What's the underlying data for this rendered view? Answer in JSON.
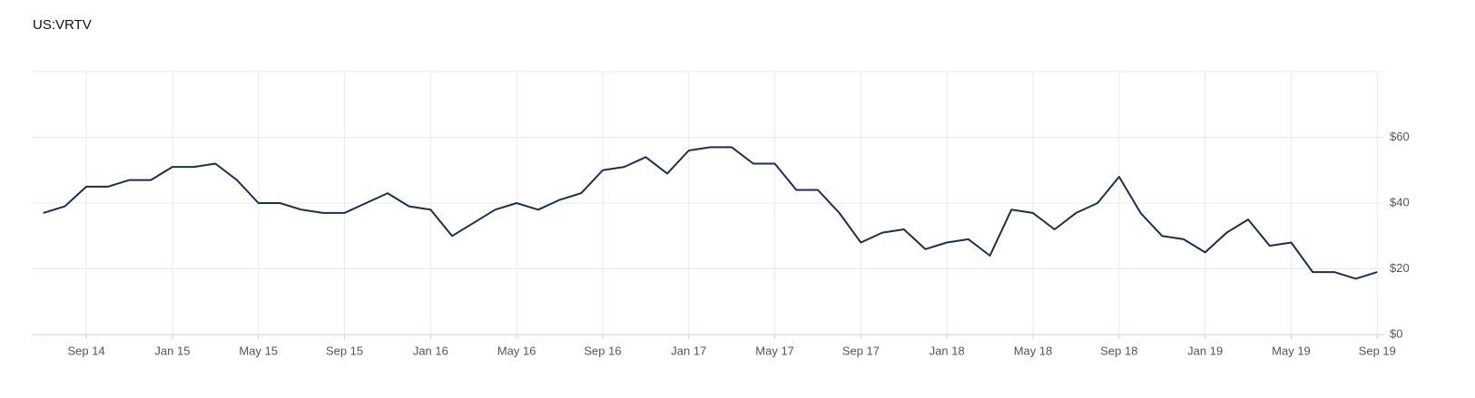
{
  "chart_data": {
    "type": "line",
    "title": "US:VRTV",
    "x": [
      "2014-07",
      "2014-08",
      "2014-09",
      "2014-10",
      "2014-11",
      "2014-12",
      "2015-01",
      "2015-02",
      "2015-03",
      "2015-04",
      "2015-05",
      "2015-06",
      "2015-07",
      "2015-08",
      "2015-09",
      "2015-10",
      "2015-11",
      "2015-12",
      "2016-01",
      "2016-02",
      "2016-03",
      "2016-04",
      "2016-05",
      "2016-06",
      "2016-07",
      "2016-08",
      "2016-09",
      "2016-10",
      "2016-11",
      "2016-12",
      "2017-01",
      "2017-02",
      "2017-03",
      "2017-04",
      "2017-05",
      "2017-06",
      "2017-07",
      "2017-08",
      "2017-09",
      "2017-10",
      "2017-11",
      "2017-12",
      "2018-01",
      "2018-02",
      "2018-03",
      "2018-04",
      "2018-05",
      "2018-06",
      "2018-07",
      "2018-08",
      "2018-09",
      "2018-10",
      "2018-11",
      "2018-12",
      "2019-01",
      "2019-02",
      "2019-03",
      "2019-04",
      "2019-05",
      "2019-06",
      "2019-07",
      "2019-08",
      "2019-09"
    ],
    "series": [
      {
        "color": "#1b2f4b",
        "values": [
          37,
          39,
          45,
          45,
          47,
          47,
          51,
          51,
          52,
          47,
          40,
          40,
          38,
          37,
          37,
          40,
          43,
          39,
          38,
          30,
          34,
          38,
          40,
          38,
          41,
          43,
          50,
          51,
          54,
          49,
          56,
          57,
          57,
          52,
          52,
          44,
          44,
          37,
          28,
          31,
          32,
          26,
          28,
          29,
          24,
          38,
          37,
          32,
          37,
          40,
          48,
          37,
          30,
          29,
          25,
          31,
          35,
          27,
          28,
          19,
          19,
          17,
          19
        ]
      }
    ],
    "xlim": [
      "2014-06",
      "2019-10"
    ],
    "xticks": [
      {
        "value": "2014-09",
        "label": "Sep 14"
      },
      {
        "value": "2015-01",
        "label": "Jan 15"
      },
      {
        "value": "2015-05",
        "label": "May 15"
      },
      {
        "value": "2015-09",
        "label": "Sep 15"
      },
      {
        "value": "2016-01",
        "label": "Jan 16"
      },
      {
        "value": "2016-05",
        "label": "May 16"
      },
      {
        "value": "2016-09",
        "label": "Sep 16"
      },
      {
        "value": "2017-01",
        "label": "Jan 17"
      },
      {
        "value": "2017-05",
        "label": "May 17"
      },
      {
        "value": "2017-09",
        "label": "Sep 17"
      },
      {
        "value": "2018-01",
        "label": "Jan 18"
      },
      {
        "value": "2018-05",
        "label": "May 18"
      },
      {
        "value": "2018-09",
        "label": "Sep 18"
      },
      {
        "value": "2019-01",
        "label": "Jan 19"
      },
      {
        "value": "2019-05",
        "label": "May 19"
      },
      {
        "value": "2019-09",
        "label": "Sep 19"
      }
    ],
    "ylim": [
      0,
      80
    ],
    "yticks": [
      {
        "value": 0,
        "label": "$0"
      },
      {
        "value": 20,
        "label": "$20"
      },
      {
        "value": 40,
        "label": "$40"
      },
      {
        "value": 60,
        "label": "$60"
      }
    ],
    "grid": true
  }
}
